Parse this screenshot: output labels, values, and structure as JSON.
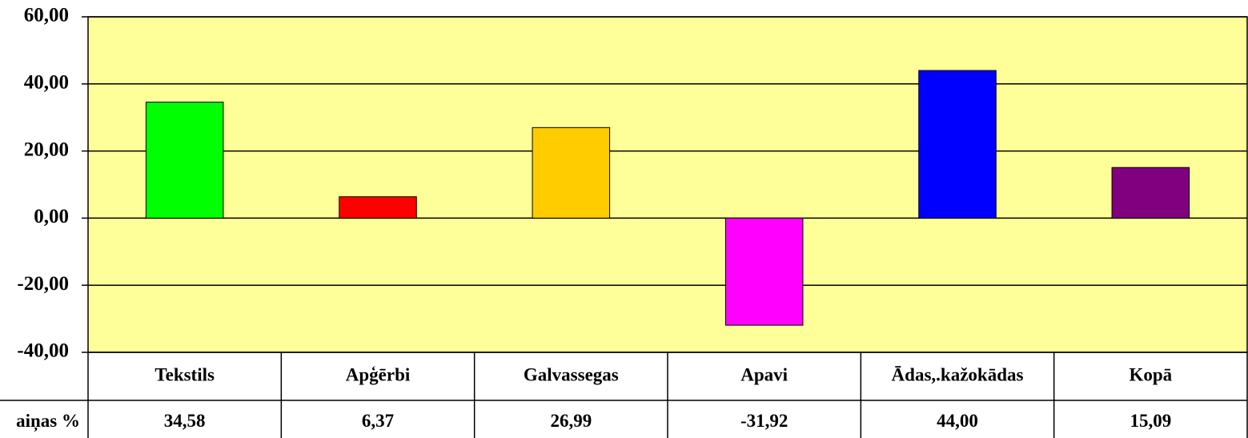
{
  "chart_data": {
    "type": "bar",
    "categories": [
      "Tekstils",
      "Apģērbi",
      "Galvassegas",
      "Apavi",
      "Ādas,.kažokādas",
      "Kopā"
    ],
    "series": [
      {
        "name": "aiņas %",
        "colors": [
          "#00ff00",
          "#ff0000",
          "#ffcc00",
          "#ff00ff",
          "#0000ff",
          "#800080"
        ],
        "values": [
          34.58,
          6.37,
          26.99,
          -31.92,
          44.0,
          15.09
        ],
        "value_labels": [
          "34,58",
          "6,37",
          "26,99",
          "-31,92",
          "44,00",
          "15,09"
        ]
      }
    ],
    "ylim": [
      -40,
      60
    ],
    "yticks": [
      {
        "value": -40,
        "label": "-40,00"
      },
      {
        "value": -20,
        "label": "-20,00"
      },
      {
        "value": 0,
        "label": "0,00"
      },
      {
        "value": 20,
        "label": "20,00"
      },
      {
        "value": 40,
        "label": "40,00"
      },
      {
        "value": 60,
        "label": "60,00"
      }
    ],
    "grid": true,
    "plot_color": "#ffff99"
  }
}
